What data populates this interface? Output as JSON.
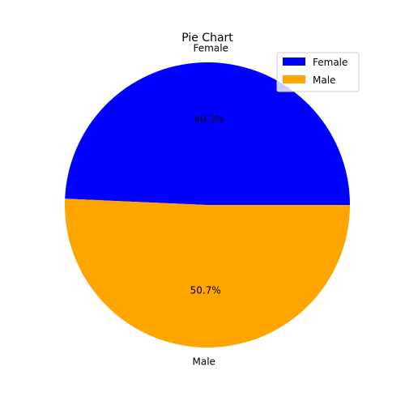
{
  "chart_data": {
    "type": "pie",
    "title": "Pie Chart",
    "legend_position": "top-right",
    "slices": [
      {
        "label": "Female",
        "value": 49.3,
        "pct_label": "49.3%",
        "color": "#0000ff"
      },
      {
        "label": "Male",
        "value": 50.7,
        "pct_label": "50.7%",
        "color": "#ffa500"
      }
    ],
    "legend": [
      {
        "label": "Female",
        "color": "#0000ff"
      },
      {
        "label": "Male",
        "color": "#ffa500"
      }
    ]
  }
}
